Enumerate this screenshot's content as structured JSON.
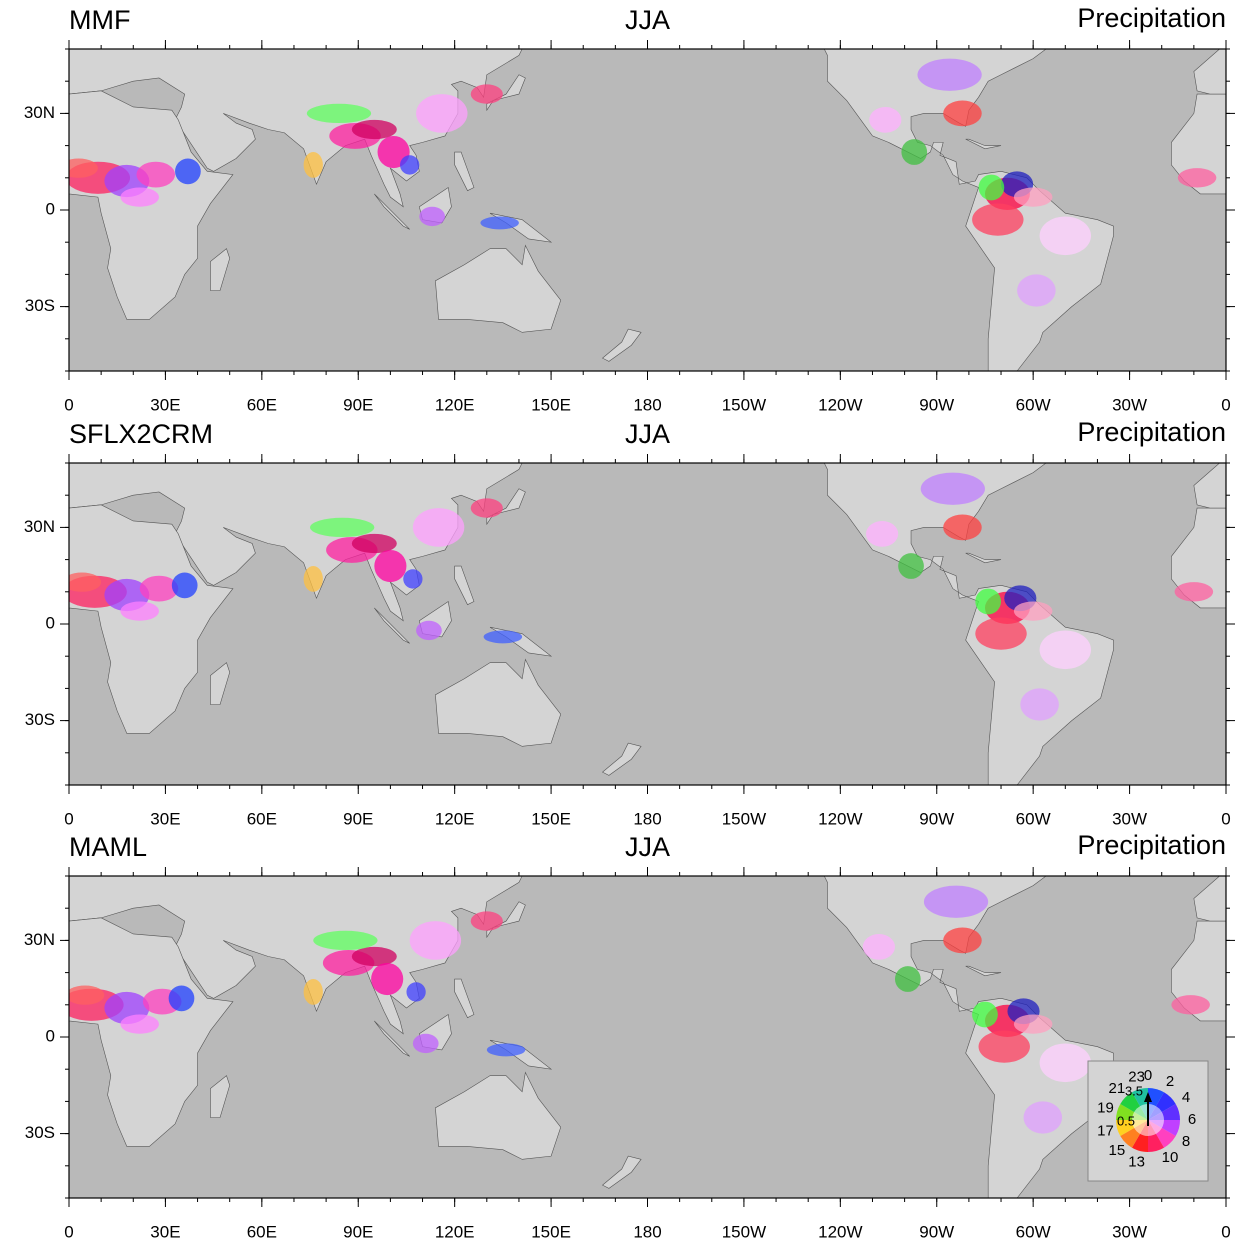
{
  "panels": [
    {
      "title_left": "MMF",
      "title_center": "JJA",
      "title_right": "Precipitation"
    },
    {
      "title_left": "SFLX2CRM",
      "title_center": "JJA",
      "title_right": "Precipitation"
    },
    {
      "title_left": "MAML",
      "title_center": "JJA",
      "title_right": "Precipitation"
    }
  ],
  "lon_ticks": [
    0,
    {
      "value": 30,
      "label": "30E"
    },
    {
      "value": 60,
      "label": "60E"
    },
    {
      "value": 90,
      "label": "90E"
    },
    {
      "value": 120,
      "label": "120E"
    },
    {
      "value": 150,
      "label": "150E"
    },
    180,
    {
      "value": 210,
      "label": "150W"
    },
    {
      "value": 240,
      "label": "120W"
    },
    {
      "value": 270,
      "label": "90W"
    },
    {
      "value": 300,
      "label": "60W"
    },
    {
      "value": 330,
      "label": "30W"
    },
    {
      "value": 360,
      "label": "0"
    }
  ],
  "lat_ticks": [
    {
      "value": 30,
      "label": "30N"
    },
    0,
    {
      "value": -30,
      "label": "30S"
    }
  ],
  "legend": {
    "hour_labels": [
      0,
      2,
      4,
      6,
      8,
      10,
      13,
      15,
      17,
      19,
      21,
      23
    ],
    "amplitude_labels": [
      3.5,
      0.5
    ]
  }
}
